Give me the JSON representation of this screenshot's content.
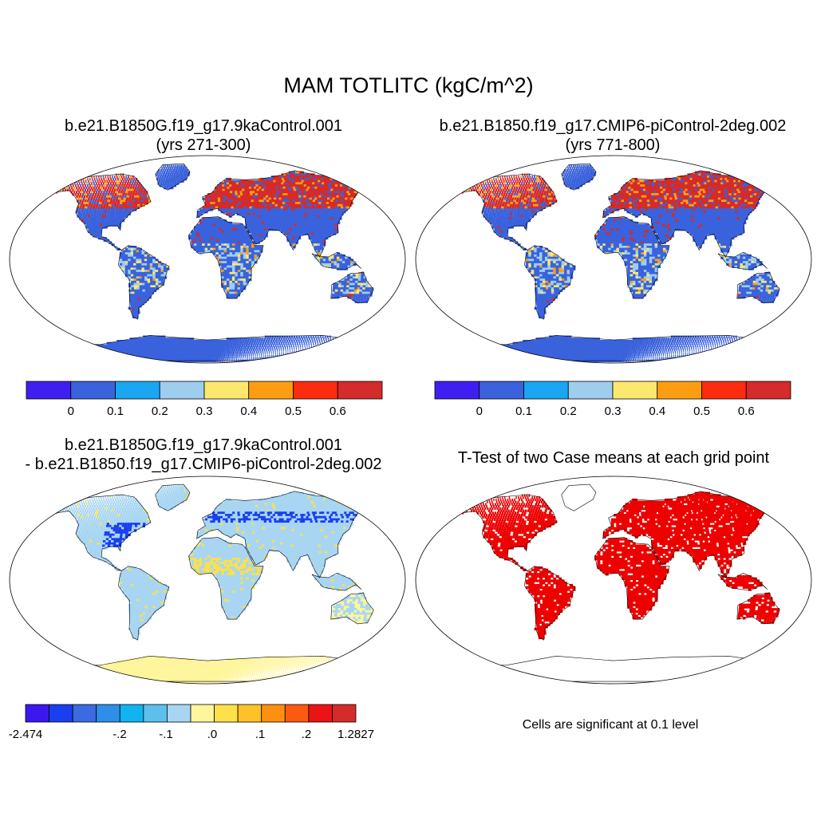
{
  "main_title": "MAM TOTLITC (kgC/m^2)",
  "panels": {
    "top_left": {
      "title_line1": "b.e21.B1850G.f19_g17.9kaControl.001",
      "title_line2": "(yrs 271-300)"
    },
    "top_right": {
      "title_line1": "b.e21.B1850.f19_g17.CMIP6-piControl-2deg.002",
      "title_line2": "(yrs 771-800)"
    },
    "bottom_left": {
      "title_line1": "b.e21.B1850G.f19_g17.9kaControl.001",
      "title_line2": "- b.e21.B1850.f19_g17.CMIP6-piControl-2deg.002"
    },
    "bottom_right": {
      "title_line1": "T-Test of two Case means at each grid point",
      "note": "Cells are significant at 0.1 level"
    }
  },
  "colorbar_abs": {
    "colors": [
      "#3f1ff0",
      "#3a62dc",
      "#1aa6f0",
      "#9fcdee",
      "#fde86e",
      "#fd9e12",
      "#fb2c10",
      "#d42b2b"
    ],
    "labels": [
      "0",
      "0.1",
      "0.2",
      "0.3",
      "0.4",
      "0.5",
      "0.6"
    ]
  },
  "colorbar_diff": {
    "colors": [
      "#3c17ef",
      "#1a3ff0",
      "#3a6be0",
      "#2e8ee8",
      "#10b4f0",
      "#5cbfec",
      "#a8d6f2",
      "#fff59c",
      "#fde04a",
      "#fdc12a",
      "#fd9010",
      "#fb5a10",
      "#ea1414",
      "#d42b2b"
    ],
    "labels": [
      "-2.474",
      "-.2",
      "-.1",
      ".0",
      ".1",
      ".2",
      "1.2827"
    ]
  },
  "map_colors": {
    "ocean": "#ffffff",
    "outline": "#000000",
    "abs_base": "#3a62dc",
    "abs_high": "#d42b2b",
    "abs_mid": "#fd9e12",
    "abs_light": "#9fcdee",
    "abs_yellow": "#fde86e",
    "diff_base": "#a8d6f2",
    "diff_low": "#1a3ff0",
    "diff_warm": "#fde04a",
    "antarctica_diff": "#fff59c",
    "ttest_sig": "#ee0000"
  }
}
